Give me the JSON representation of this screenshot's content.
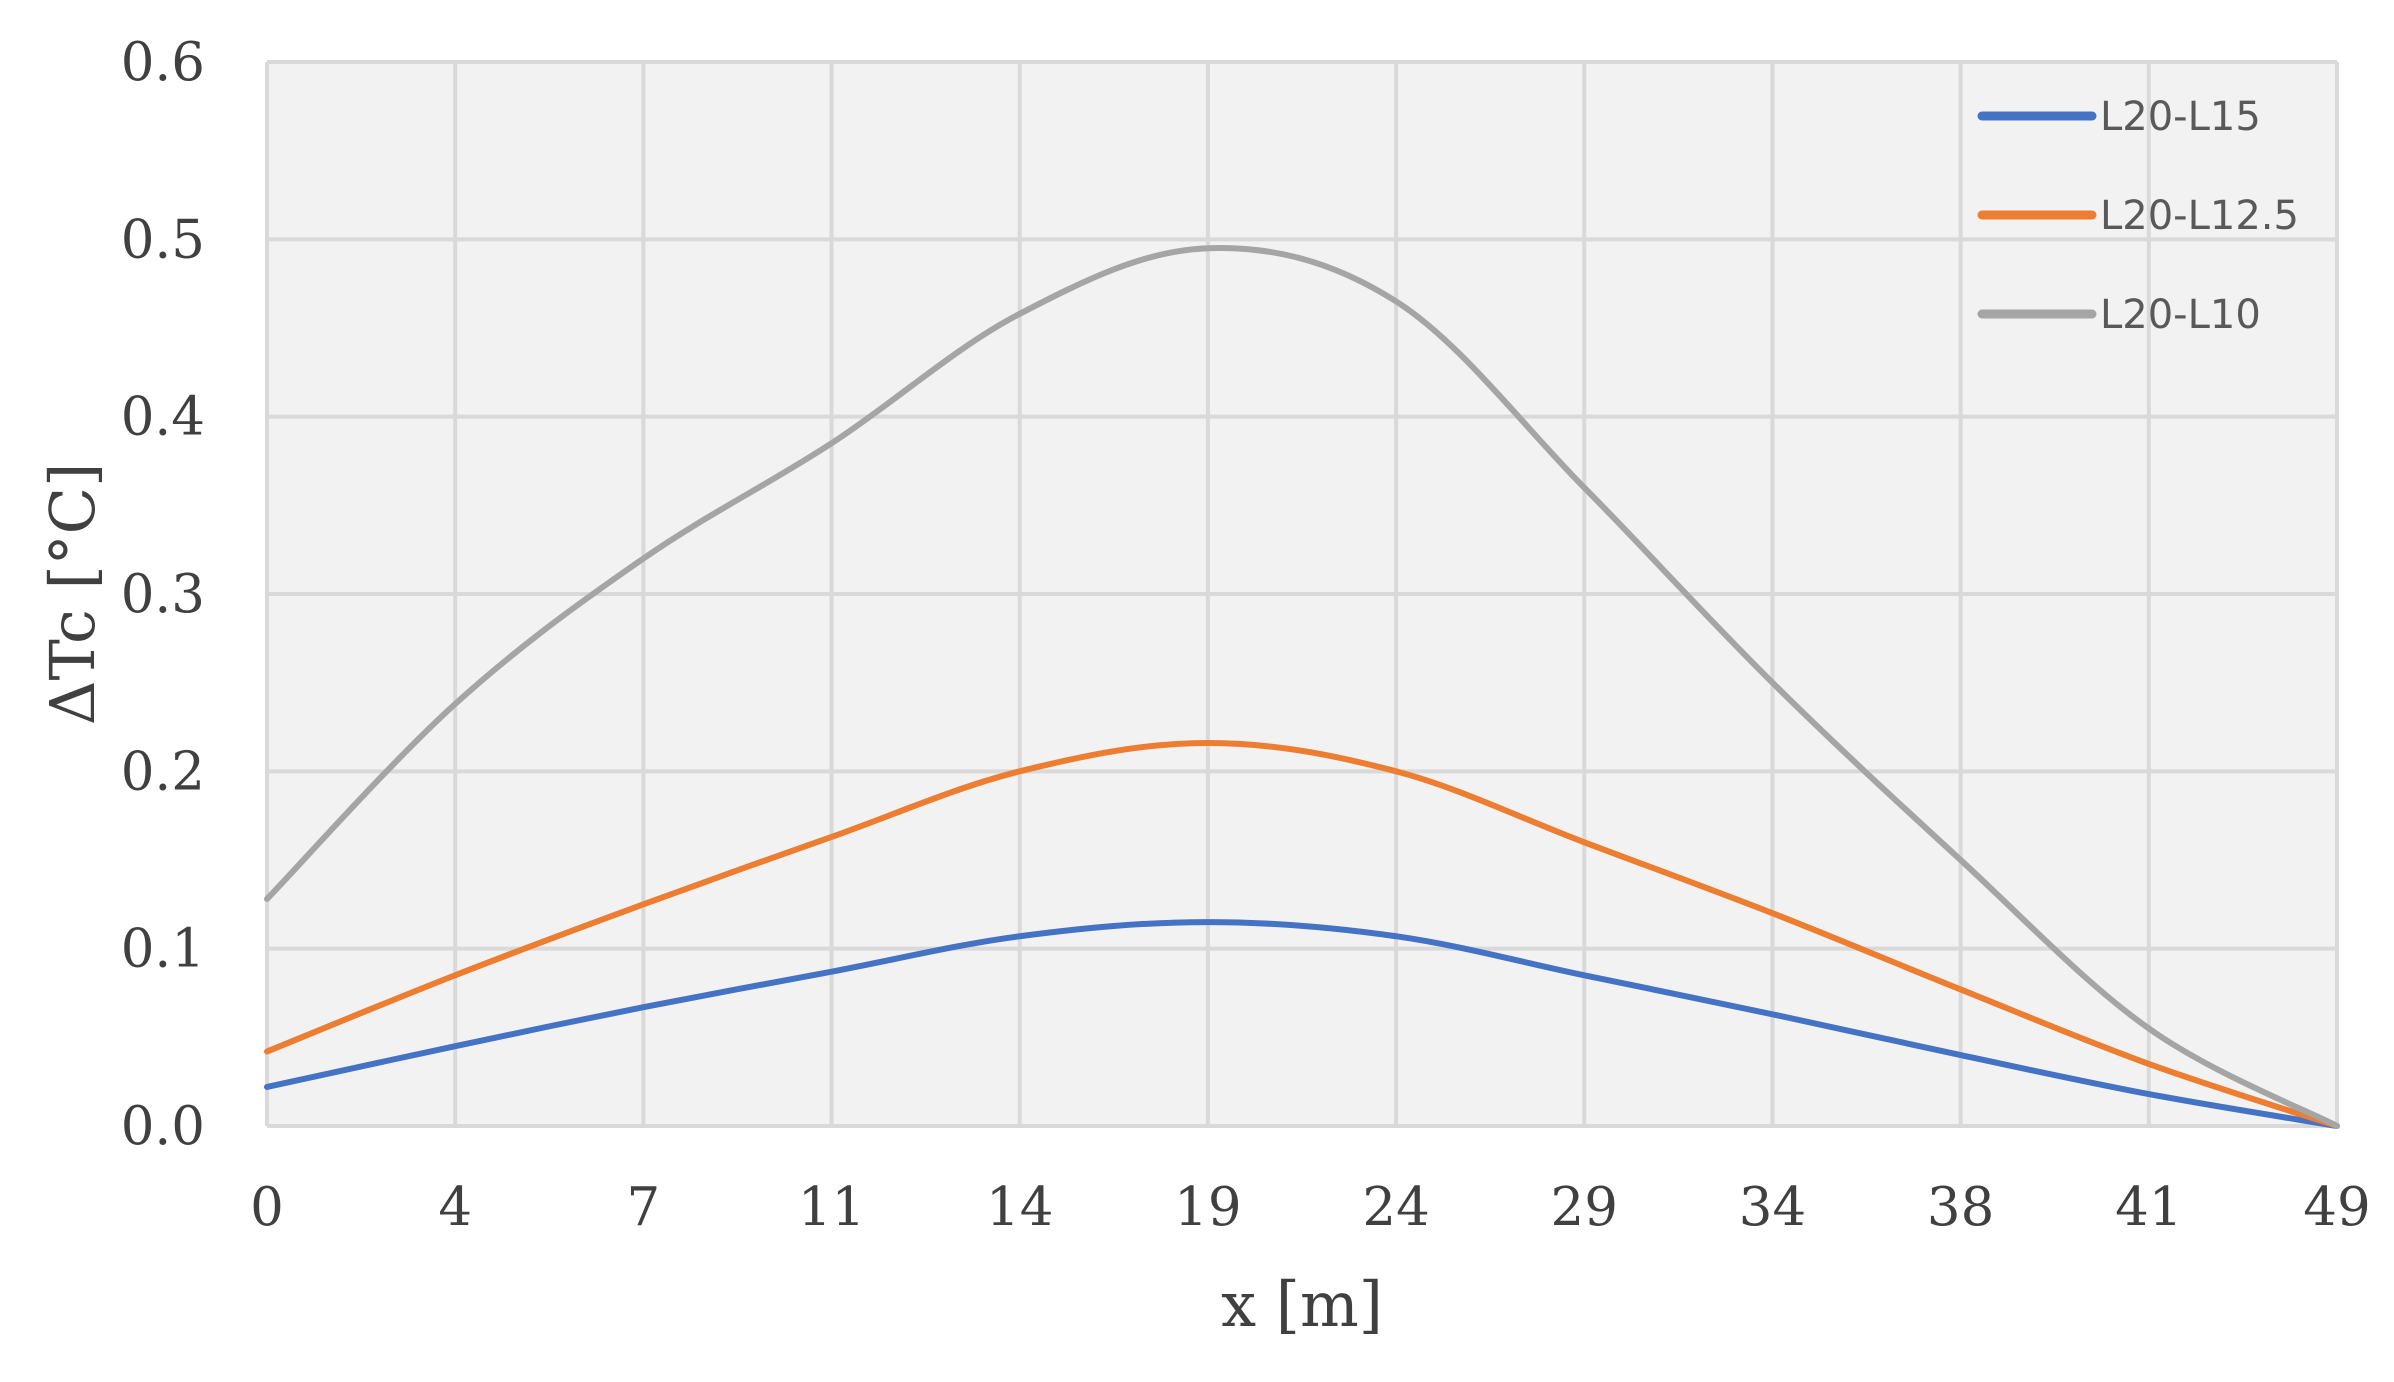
{
  "chart_data": {
    "type": "line",
    "title": "",
    "xlabel": "x [m]",
    "ylabel": "ΔTc [°C]",
    "categories": [
      "0",
      "4",
      "7",
      "11",
      "14",
      "19",
      "24",
      "29",
      "34",
      "38",
      "41",
      "49"
    ],
    "ylim": [
      0,
      0.6
    ],
    "yticks": [
      "0.0",
      "0.1",
      "0.2",
      "0.3",
      "0.4",
      "0.5",
      "0.6"
    ],
    "grid": true,
    "legend_position": "top-right",
    "series": [
      {
        "name": "L20-L15",
        "color": "#4472c4",
        "values": [
          0.022,
          0.045,
          0.067,
          0.087,
          0.107,
          0.115,
          0.107,
          0.085,
          0.063,
          0.04,
          0.018,
          0.0
        ]
      },
      {
        "name": "L20-L12.5",
        "color": "#ed7d31",
        "values": [
          0.042,
          0.085,
          0.125,
          0.163,
          0.2,
          0.216,
          0.2,
          0.16,
          0.12,
          0.077,
          0.035,
          0.0
        ]
      },
      {
        "name": "L20-L10",
        "color": "#a5a5a5",
        "values": [
          0.128,
          0.238,
          0.32,
          0.385,
          0.458,
          0.495,
          0.465,
          0.36,
          0.25,
          0.15,
          0.055,
          0.0
        ]
      }
    ]
  }
}
